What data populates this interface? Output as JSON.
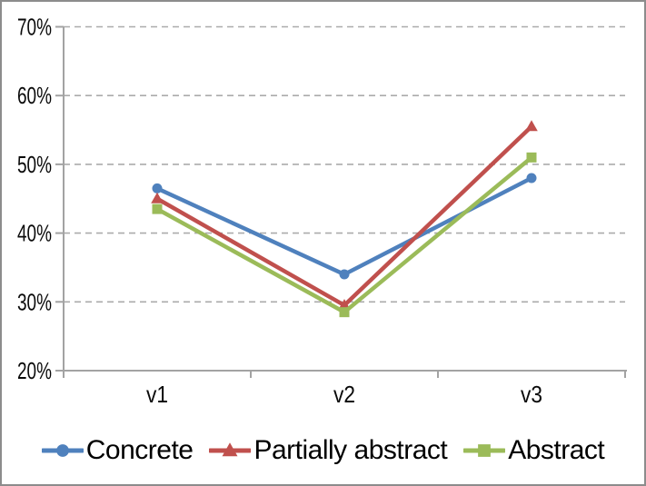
{
  "window": {
    "background_color": "#FFFFFF",
    "border_color": "#8C8C8C"
  },
  "chart_data": {
    "type": "line",
    "title": "",
    "xlabel": "",
    "ylabel": "",
    "categories": [
      "v1",
      "v2",
      "v3"
    ],
    "series": [
      {
        "name": "Concrete",
        "color": "#4F81BD",
        "marker": "circle",
        "values": [
          46.5,
          34,
          48
        ]
      },
      {
        "name": "Partially abstract",
        "color": "#C0504D",
        "marker": "triangle",
        "values": [
          45,
          29.5,
          55.5
        ]
      },
      {
        "name": "Abstract",
        "color": "#9BBB59",
        "marker": "square",
        "values": [
          43.5,
          28.5,
          51
        ]
      }
    ],
    "y_axis": {
      "min": 20,
      "max": 70,
      "step": 10,
      "tick_labels": [
        "20%",
        "30%",
        "40%",
        "50%",
        "60%",
        "70%"
      ],
      "unit": "percent"
    },
    "x_axis": {
      "tick_labels": [
        "v1",
        "v2",
        "v3"
      ]
    },
    "grid": "horizontal-dashed",
    "legend_position": "bottom"
  },
  "styles": {
    "axis_color": "#A3A3A3",
    "gridline_color": "#ABABAB",
    "text_color": "#0A0A0A",
    "axis_font_size": 26,
    "legend_font_size": 30
  }
}
